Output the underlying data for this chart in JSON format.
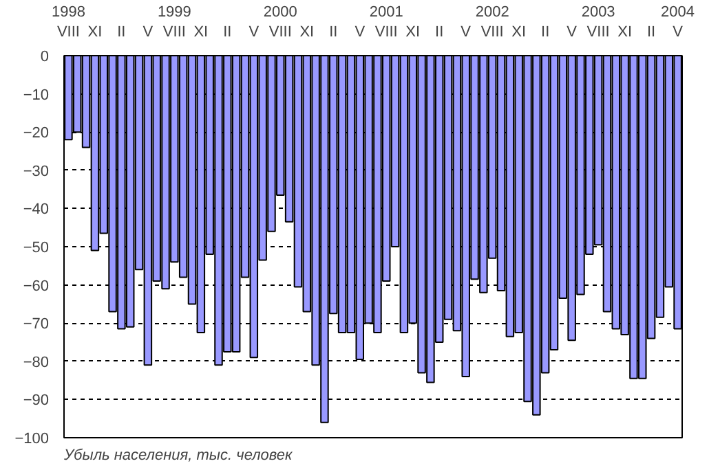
{
  "chart_data": {
    "type": "bar",
    "color": "#9999ff",
    "categories": [
      "1998\nVIII",
      null,
      null,
      "XI",
      null,
      null,
      "II",
      null,
      null,
      "V",
      null,
      null,
      "1999\nVIII",
      null,
      null,
      "XI",
      null,
      null,
      "II",
      null,
      null,
      "V",
      null,
      null,
      "2000\nVIII",
      null,
      null,
      "XI",
      null,
      null,
      "II",
      null,
      null,
      "V",
      null,
      null,
      "2001\nVIII",
      null,
      null,
      "XI",
      null,
      null,
      "II",
      null,
      null,
      "V",
      null,
      null,
      "2002\nVIII",
      null,
      null,
      "XI",
      null,
      null,
      "II",
      null,
      null,
      "V",
      null,
      null,
      "2003\nVIII",
      null,
      null,
      "XI",
      null,
      null,
      "II",
      null,
      null,
      "2004\nV"
    ],
    "values": [
      -22,
      -20,
      -24,
      -51,
      -46.5,
      -67,
      -71.5,
      -71,
      -56,
      -81,
      -59,
      -61,
      -54,
      -58,
      -65,
      -72.5,
      -52,
      -81,
      -77.5,
      -77.5,
      -58,
      -79,
      -53.5,
      -46,
      -36.5,
      -43.5,
      -60.5,
      -67,
      -81,
      -96,
      -67.5,
      -72.5,
      -72.5,
      -79.5,
      -70,
      -72.5,
      -59,
      -50,
      -72.5,
      -70,
      -83,
      -85.5,
      -75,
      -69,
      -72,
      -84,
      -58.5,
      -62,
      -53,
      -61.5,
      -73.5,
      -72.5,
      -90.5,
      -94,
      -83,
      -77,
      -63.5,
      -74.5,
      -62.5,
      -52,
      -49.5,
      -67,
      -71.5,
      -73,
      -84.5,
      -84.5,
      -74,
      -68.5,
      -60.5,
      -71.5
    ],
    "ylim": [
      -100,
      0
    ],
    "yticks": [
      -100,
      -90,
      -80,
      -70,
      -60,
      -50,
      -40,
      -30,
      -20,
      -10,
      0
    ],
    "grid": "y",
    "annotations": [
      "Убыль населения, тыс. человек"
    ]
  }
}
